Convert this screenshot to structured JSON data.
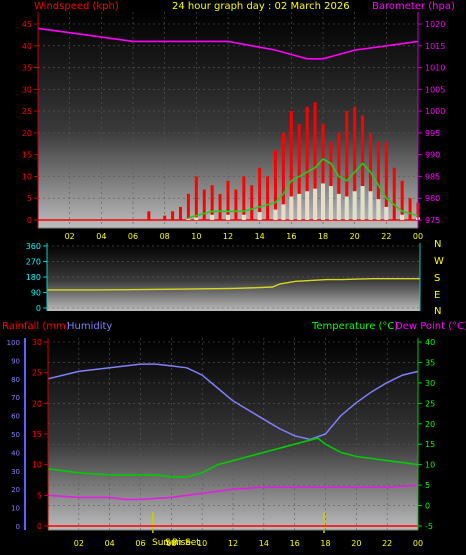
{
  "header": {
    "title": "24 hour graph day : 02 March 2026",
    "wind_label": "Windspeed (kph)",
    "baro_label": "Barometer (hpa)"
  },
  "wind_direction_panel": {
    "compass_labels": [
      "N",
      "W",
      "S",
      "E",
      "N"
    ]
  },
  "lower_header": {
    "rain_label": "Rainfall (mm)",
    "humidity_label": "Humidity",
    "temp_label": "Temperature (°C)",
    "dew_label": "Dew Point (°C)"
  },
  "sun_labels": {
    "sunrise": "Sun Rise",
    "sunset": "Sun Set"
  },
  "colors": {
    "wind": "#ff0000",
    "gust": "#ff0000",
    "wind_avg": "#22cc22",
    "wind_bars": "#e8ffe8",
    "barometer": "#ff00ff",
    "direction": "#d8d820",
    "humidity": "#8080ff",
    "temperature": "#00cc00",
    "dew_point": "#e020e0",
    "rain": "#ff0000",
    "axis_cyan": "#00ffff",
    "text_yellow": "#ffff00"
  },
  "chart_data": [
    {
      "type": "line",
      "title": "24 hour graph day : 02 March 2026",
      "x_ticks": [
        "02",
        "04",
        "06",
        "08",
        "10",
        "12",
        "14",
        "16",
        "18",
        "20",
        "22",
        "00"
      ],
      "x_range_hours": [
        0,
        24
      ],
      "grid": true,
      "ylabel_left": "Windspeed (kph)",
      "ylim_left": [
        0,
        45
      ],
      "yticks_left": [
        0,
        5,
        10,
        15,
        20,
        25,
        30,
        35,
        40,
        45
      ],
      "ylabel_right": "Barometer (hpa)",
      "ylim_right": [
        975,
        1020
      ],
      "yticks_right": [
        975,
        980,
        985,
        990,
        995,
        1000,
        1005,
        1010,
        1015,
        1020
      ],
      "series": [
        {
          "name": "Barometer (hpa)",
          "axis": "right",
          "x": [
            0,
            2,
            4,
            6,
            8,
            10,
            12,
            13.5,
            15,
            16,
            17,
            18,
            19,
            20,
            22,
            24
          ],
          "y": [
            1019,
            1018,
            1017,
            1016,
            1016,
            1016,
            1016,
            1015,
            1014,
            1013,
            1012,
            1012,
            1013,
            1014,
            1015,
            1016
          ]
        },
        {
          "axis": "left",
          "x": [
            9.5,
            10,
            11,
            12,
            13,
            14,
            15,
            15.5,
            16,
            16.5,
            17,
            17.5,
            18,
            18.5,
            19,
            19.5,
            20,
            20.5,
            21,
            21.5,
            22,
            23,
            24
          ],
          "y": [
            0.5,
            1,
            2,
            2,
            2,
            3,
            4,
            6,
            9,
            10,
            11,
            12,
            14,
            13,
            10,
            9,
            11,
            13,
            11,
            8,
            5,
            2,
            1
          ]
        },
        {
          "axis": "left",
          "x": [
            0,
            1,
            2,
            3,
            4,
            5,
            6,
            7,
            7.5,
            8,
            8.5,
            9,
            9.5,
            10,
            10.5,
            11,
            11.5,
            12,
            12.5,
            13,
            13.5,
            14,
            14.5,
            15,
            15.5,
            16,
            16.5,
            17,
            17.5,
            18,
            18.5,
            19,
            19.5,
            20,
            20.5,
            21,
            21.5,
            22,
            22.5,
            23,
            23.5,
            24
          ],
          "y": [
            0,
            0,
            0,
            0,
            0,
            0,
            0,
            2,
            0,
            1,
            2,
            3,
            6,
            10,
            7,
            8,
            6,
            9,
            7,
            10,
            8,
            12,
            10,
            16,
            20,
            25,
            22,
            26,
            27,
            22,
            18,
            20,
            25,
            26,
            24,
            20,
            18,
            18,
            12,
            9,
            5,
            4
          ]
        }
      ]
    },
    {
      "type": "line",
      "ylim": [
        0,
        360
      ],
      "yticks": [
        0,
        90,
        180,
        270,
        360
      ],
      "compass": [
        "N",
        "W",
        "S",
        "E",
        "N"
      ],
      "series": [
        {
          "x": [
            0,
            3,
            6,
            9,
            12,
            13.5,
            14.5,
            15,
            16,
            17,
            18,
            19,
            20,
            21,
            22,
            23,
            24
          ],
          "y": [
            105,
            105,
            107,
            110,
            114,
            118,
            122,
            140,
            155,
            160,
            165,
            165,
            168,
            170,
            170,
            170,
            170
          ]
        }
      ]
    },
    {
      "type": "line",
      "x_ticks": [
        "02",
        "04",
        "06",
        "08",
        "10",
        "12",
        "14",
        "16",
        "18",
        "20",
        "22",
        "00"
      ],
      "x_range_hours": [
        0,
        24
      ],
      "grid": true,
      "ylabel_left": "Rainfall (mm)",
      "ylim_rain": [
        0,
        30
      ],
      "yticks_rain": [
        0,
        5,
        10,
        15,
        20,
        25,
        30
      ],
      "ylim_humidity": [
        0,
        100
      ],
      "yticks_humidity": [
        0,
        10,
        20,
        30,
        40,
        50,
        60,
        70,
        80,
        90,
        100
      ],
      "ylabel_right": "Temperature (°C) / Dew Point (°C)",
      "ylim_temp": [
        -5,
        40
      ],
      "yticks_temp": [
        -5,
        0,
        5,
        10,
        15,
        20,
        25,
        30,
        35,
        40
      ],
      "markers": [
        {
          "label": "Sun Rise",
          "hour": 6.8
        },
        {
          "label": "Sun Set",
          "hour": 17.9
        }
      ],
      "series": [
        {
          "name": "Humidity",
          "axis": "humidity",
          "x": [
            0,
            2,
            4,
            6,
            7,
            8,
            9,
            10,
            11,
            12,
            13,
            14,
            15,
            16,
            17,
            18,
            18.5,
            19,
            20,
            21,
            22,
            23,
            24
          ],
          "y": [
            80,
            84,
            86,
            88,
            88,
            87,
            86,
            82,
            75,
            68,
            63,
            58,
            53,
            49,
            47,
            50,
            55,
            60,
            67,
            73,
            78,
            82,
            84
          ]
        },
        {
          "name": "Temperature (°C)",
          "axis": "temp",
          "x": [
            0,
            2,
            4,
            6,
            7,
            8,
            9,
            10,
            11,
            12,
            13,
            14,
            15,
            16,
            17,
            17.5,
            18,
            19,
            20,
            21,
            22,
            23,
            24
          ],
          "y": [
            9,
            8,
            7.5,
            7.5,
            7.5,
            7,
            7,
            8,
            10,
            11,
            12,
            13,
            14,
            15,
            16,
            16.5,
            15,
            13,
            12,
            11.5,
            11,
            10.5,
            10
          ]
        },
        {
          "name": "Dew Point (°C)",
          "axis": "temp",
          "x": [
            0,
            2,
            4,
            5,
            6,
            8,
            10,
            12,
            14,
            16,
            18,
            20,
            22,
            24
          ],
          "y": [
            2.5,
            2,
            2,
            1.5,
            1.5,
            2,
            3,
            4,
            4.5,
            4.5,
            4.5,
            4.5,
            4.5,
            5
          ]
        },
        {
          "name": "Rainfall (mm)",
          "axis": "rain",
          "x": [
            0,
            24
          ],
          "y": [
            0,
            0
          ]
        }
      ]
    }
  ]
}
